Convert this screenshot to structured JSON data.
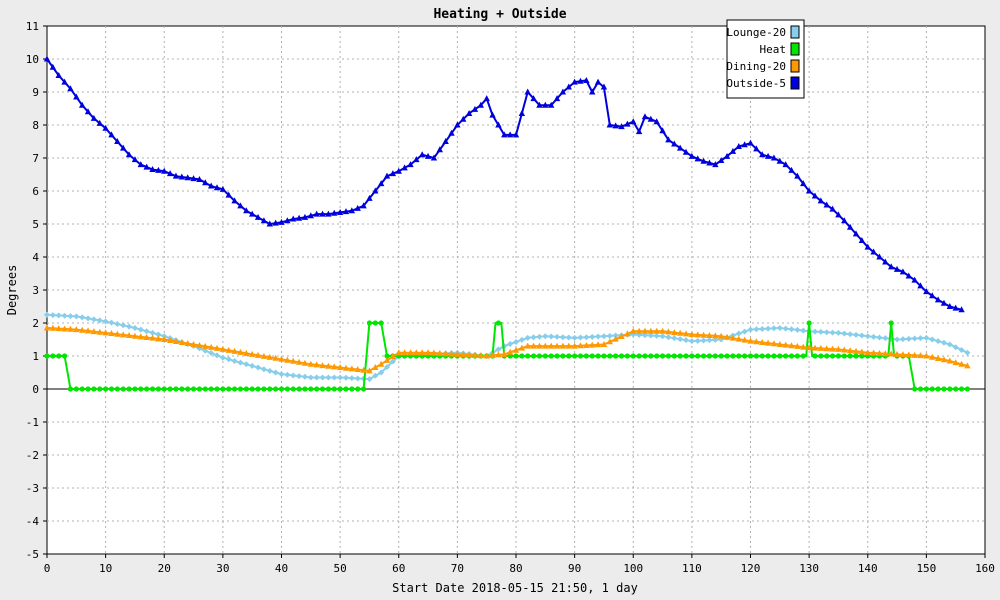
{
  "chart_data": {
    "type": "line",
    "title": "Heating + Outside",
    "xlabel": "Start Date 2018-05-15 21:50, 1 day",
    "ylabel": "Degrees",
    "xlim": [
      0,
      160
    ],
    "ylim": [
      -5,
      11
    ],
    "xticks": [
      0,
      10,
      20,
      30,
      40,
      50,
      60,
      70,
      80,
      90,
      100,
      110,
      120,
      130,
      140,
      150,
      160
    ],
    "yticks": [
      -5,
      -4,
      -3,
      -2,
      -1,
      0,
      1,
      2,
      3,
      4,
      5,
      6,
      7,
      8,
      9,
      10,
      11
    ],
    "grid": true,
    "legend_position": "top-right",
    "series": [
      {
        "name": "Lounge-20",
        "color": "#87ceeb",
        "marker": "diamond",
        "points": [
          [
            0,
            2.25
          ],
          [
            5,
            2.2
          ],
          [
            10,
            2.05
          ],
          [
            15,
            1.85
          ],
          [
            20,
            1.6
          ],
          [
            25,
            1.3
          ],
          [
            30,
            0.95
          ],
          [
            35,
            0.7
          ],
          [
            40,
            0.45
          ],
          [
            45,
            0.35
          ],
          [
            50,
            0.35
          ],
          [
            55,
            0.3
          ],
          [
            57,
            0.5
          ],
          [
            60,
            1.0
          ],
          [
            65,
            1.05
          ],
          [
            70,
            1.1
          ],
          [
            75,
            1.0
          ],
          [
            78,
            1.3
          ],
          [
            82,
            1.55
          ],
          [
            85,
            1.6
          ],
          [
            90,
            1.55
          ],
          [
            95,
            1.6
          ],
          [
            100,
            1.65
          ],
          [
            105,
            1.6
          ],
          [
            110,
            1.45
          ],
          [
            115,
            1.5
          ],
          [
            120,
            1.8
          ],
          [
            125,
            1.85
          ],
          [
            130,
            1.75
          ],
          [
            135,
            1.7
          ],
          [
            140,
            1.6
          ],
          [
            145,
            1.5
          ],
          [
            150,
            1.55
          ],
          [
            154,
            1.35
          ],
          [
            157,
            1.1
          ]
        ]
      },
      {
        "name": "Heat",
        "color": "#00e600",
        "marker": "circle",
        "points": [
          [
            0,
            1
          ],
          [
            3,
            1
          ],
          [
            4,
            0
          ],
          [
            54,
            0
          ],
          [
            55,
            2
          ],
          [
            57,
            2
          ],
          [
            58,
            1
          ],
          [
            76,
            1
          ],
          [
            76.5,
            2
          ],
          [
            77.5,
            2
          ],
          [
            78,
            1
          ],
          [
            129.5,
            1
          ],
          [
            130,
            2
          ],
          [
            130.5,
            1
          ],
          [
            143.5,
            1
          ],
          [
            144,
            2
          ],
          [
            144.5,
            1
          ],
          [
            147,
            1
          ],
          [
            148,
            0
          ],
          [
            157,
            0
          ]
        ]
      },
      {
        "name": "Dining-20",
        "color": "#ff9900",
        "marker": "triangle",
        "points": [
          [
            0,
            1.85
          ],
          [
            5,
            1.8
          ],
          [
            10,
            1.7
          ],
          [
            15,
            1.6
          ],
          [
            20,
            1.5
          ],
          [
            25,
            1.35
          ],
          [
            30,
            1.2
          ],
          [
            35,
            1.05
          ],
          [
            40,
            0.9
          ],
          [
            45,
            0.75
          ],
          [
            50,
            0.65
          ],
          [
            55,
            0.55
          ],
          [
            57,
            0.75
          ],
          [
            60,
            1.1
          ],
          [
            65,
            1.1
          ],
          [
            70,
            1.05
          ],
          [
            75,
            1.0
          ],
          [
            78,
            1.05
          ],
          [
            82,
            1.3
          ],
          [
            85,
            1.3
          ],
          [
            90,
            1.3
          ],
          [
            95,
            1.35
          ],
          [
            100,
            1.75
          ],
          [
            105,
            1.75
          ],
          [
            110,
            1.65
          ],
          [
            115,
            1.6
          ],
          [
            120,
            1.45
          ],
          [
            125,
            1.35
          ],
          [
            130,
            1.25
          ],
          [
            135,
            1.2
          ],
          [
            140,
            1.1
          ],
          [
            145,
            1.05
          ],
          [
            150,
            1.0
          ],
          [
            154,
            0.85
          ],
          [
            157,
            0.7
          ]
        ]
      },
      {
        "name": "Outside-5",
        "color": "#0000dd",
        "marker": "triangle",
        "points": [
          [
            0,
            10
          ],
          [
            2,
            9.5
          ],
          [
            4,
            9.1
          ],
          [
            6,
            8.6
          ],
          [
            8,
            8.2
          ],
          [
            10,
            7.9
          ],
          [
            12,
            7.5
          ],
          [
            14,
            7.1
          ],
          [
            16,
            6.8
          ],
          [
            18,
            6.65
          ],
          [
            20,
            6.6
          ],
          [
            22,
            6.45
          ],
          [
            24,
            6.4
          ],
          [
            26,
            6.35
          ],
          [
            28,
            6.15
          ],
          [
            30,
            6.05
          ],
          [
            32,
            5.7
          ],
          [
            34,
            5.4
          ],
          [
            36,
            5.2
          ],
          [
            38,
            5.0
          ],
          [
            40,
            5.05
          ],
          [
            42,
            5.15
          ],
          [
            44,
            5.2
          ],
          [
            46,
            5.3
          ],
          [
            48,
            5.3
          ],
          [
            50,
            5.35
          ],
          [
            52,
            5.4
          ],
          [
            54,
            5.55
          ],
          [
            56,
            6.0
          ],
          [
            58,
            6.45
          ],
          [
            60,
            6.6
          ],
          [
            62,
            6.8
          ],
          [
            64,
            7.1
          ],
          [
            66,
            7.0
          ],
          [
            68,
            7.5
          ],
          [
            70,
            8.0
          ],
          [
            72,
            8.35
          ],
          [
            74,
            8.6
          ],
          [
            75,
            8.8
          ],
          [
            76,
            8.3
          ],
          [
            78,
            7.7
          ],
          [
            80,
            7.7
          ],
          [
            82,
            9.0
          ],
          [
            84,
            8.6
          ],
          [
            86,
            8.6
          ],
          [
            88,
            9.0
          ],
          [
            90,
            9.3
          ],
          [
            92,
            9.35
          ],
          [
            93,
            9.0
          ],
          [
            94,
            9.3
          ],
          [
            95,
            9.15
          ],
          [
            96,
            8.0
          ],
          [
            98,
            7.95
          ],
          [
            100,
            8.1
          ],
          [
            101,
            7.8
          ],
          [
            102,
            8.25
          ],
          [
            104,
            8.1
          ],
          [
            106,
            7.55
          ],
          [
            108,
            7.3
          ],
          [
            110,
            7.05
          ],
          [
            112,
            6.9
          ],
          [
            114,
            6.8
          ],
          [
            116,
            7.05
          ],
          [
            118,
            7.35
          ],
          [
            120,
            7.45
          ],
          [
            122,
            7.1
          ],
          [
            124,
            7.0
          ],
          [
            126,
            6.8
          ],
          [
            128,
            6.45
          ],
          [
            130,
            6.0
          ],
          [
            132,
            5.7
          ],
          [
            134,
            5.45
          ],
          [
            136,
            5.1
          ],
          [
            138,
            4.7
          ],
          [
            140,
            4.3
          ],
          [
            142,
            4.0
          ],
          [
            144,
            3.7
          ],
          [
            146,
            3.55
          ],
          [
            148,
            3.3
          ],
          [
            150,
            2.95
          ],
          [
            152,
            2.7
          ],
          [
            154,
            2.5
          ],
          [
            156,
            2.4
          ]
        ]
      }
    ]
  }
}
